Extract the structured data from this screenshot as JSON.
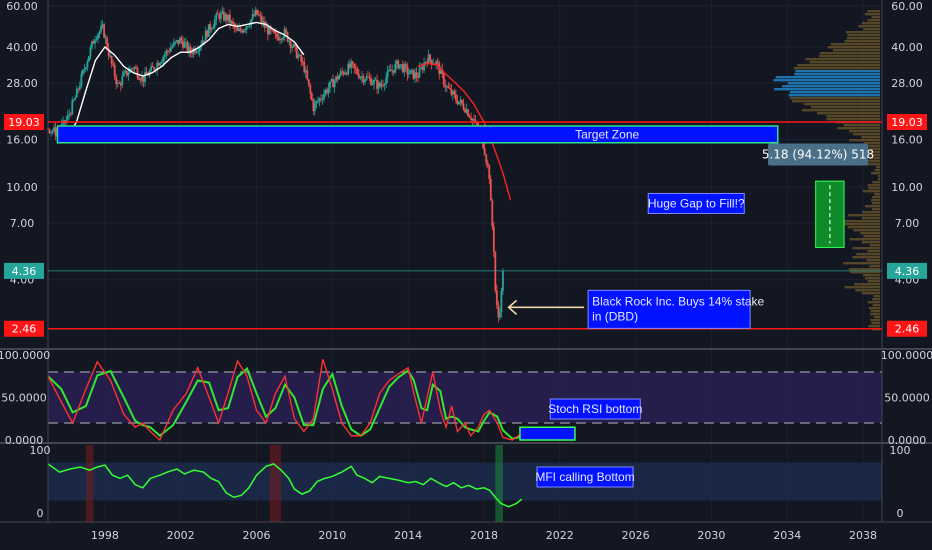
{
  "chart_data": [
    {
      "type": "candlestick",
      "panel": "price",
      "scale": "log",
      "ylim": [
        2.2,
        60
      ],
      "xlim": [
        1995.0,
        2039.0
      ],
      "y_ticks": [
        "60.00",
        "40.00",
        "28.00",
        "16.00",
        "10.00",
        "7.00",
        "4.00"
      ],
      "price_labels": {
        "upper_red": "19.03",
        "current": "4.36",
        "lower_red": "2.46"
      },
      "levels": {
        "upper_red": 19.03,
        "current": 4.36,
        "lower_red": 2.46
      },
      "target_zone": {
        "label": "Target Zone",
        "y_low": 15.5,
        "y_high": 18.3,
        "x_start": 1995.5,
        "x_end": 2033.5
      },
      "annotations": [
        {
          "id": "gap",
          "text": "Huge Gap to Fill!?",
          "x": 2029.2,
          "y": 8.5
        },
        {
          "id": "blackrock",
          "lines": [
            "Black Rock Inc. Buys 14% stake",
            "in (DBD)"
          ],
          "x": 2023.6,
          "y": 3.1
        }
      ],
      "measure_box": {
        "text": "5.18 (94.12%) 518",
        "x_start": 2035.5,
        "x_end": 2037.0,
        "y_low": 5.5,
        "y_high": 10.6
      },
      "price_path": [
        [
          1995.0,
          18.0
        ],
        [
          1995.5,
          17.0
        ],
        [
          1996.0,
          19.5
        ],
        [
          1996.5,
          25.0
        ],
        [
          1997.0,
          34.0
        ],
        [
          1997.5,
          45.0
        ],
        [
          1997.9,
          48.0
        ],
        [
          1998.3,
          35.0
        ],
        [
          1998.7,
          27.0
        ],
        [
          1999.0,
          30.0
        ],
        [
          1999.5,
          33.0
        ],
        [
          2000.0,
          29.0
        ],
        [
          2000.5,
          32.0
        ],
        [
          2001.0,
          36.0
        ],
        [
          2001.5,
          40.0
        ],
        [
          2002.0,
          43.0
        ],
        [
          2002.5,
          38.0
        ],
        [
          2003.0,
          41.0
        ],
        [
          2003.5,
          48.0
        ],
        [
          2004.0,
          55.0
        ],
        [
          2004.5,
          53.0
        ],
        [
          2005.0,
          46.0
        ],
        [
          2005.5,
          50.0
        ],
        [
          2006.0,
          56.0
        ],
        [
          2006.5,
          48.0
        ],
        [
          2007.0,
          44.0
        ],
        [
          2007.5,
          46.0
        ],
        [
          2008.0,
          39.0
        ],
        [
          2008.5,
          33.0
        ],
        [
          2009.0,
          22.0
        ],
        [
          2009.5,
          25.0
        ],
        [
          2010.0,
          28.0
        ],
        [
          2010.5,
          31.0
        ],
        [
          2011.0,
          33.0
        ],
        [
          2011.5,
          30.0
        ],
        [
          2012.0,
          29.0
        ],
        [
          2012.5,
          27.0
        ],
        [
          2013.0,
          31.0
        ],
        [
          2013.5,
          34.0
        ],
        [
          2014.0,
          31.0
        ],
        [
          2014.5,
          30.0
        ],
        [
          2015.0,
          36.0
        ],
        [
          2015.5,
          34.0
        ],
        [
          2016.0,
          27.0
        ],
        [
          2016.5,
          24.0
        ],
        [
          2017.0,
          22.0
        ],
        [
          2017.5,
          19.0
        ],
        [
          2018.0,
          15.0
        ],
        [
          2018.3,
          11.0
        ],
        [
          2018.4,
          7.5
        ],
        [
          2018.5,
          5.8
        ],
        [
          2018.6,
          3.6
        ],
        [
          2018.7,
          3.0
        ],
        [
          2018.8,
          2.6
        ],
        [
          2018.9,
          3.4
        ],
        [
          2019.0,
          4.36
        ]
      ],
      "ma_white": [
        [
          1995.5,
          16.0
        ],
        [
          1996.0,
          16.5
        ],
        [
          1996.5,
          19.0
        ],
        [
          1997.0,
          26.0
        ],
        [
          1997.5,
          35.0
        ],
        [
          1998.0,
          40.0
        ],
        [
          1998.5,
          37.0
        ],
        [
          1999.0,
          33.0
        ],
        [
          1999.5,
          31.0
        ],
        [
          2000.0,
          30.0
        ],
        [
          2000.5,
          31.0
        ],
        [
          2001.0,
          33.0
        ],
        [
          2001.5,
          36.0
        ],
        [
          2002.0,
          38.0
        ],
        [
          2002.5,
          38.0
        ],
        [
          2003.0,
          40.0
        ],
        [
          2003.5,
          43.0
        ],
        [
          2004.0,
          48.0
        ],
        [
          2004.5,
          50.0
        ],
        [
          2005.0,
          49.0
        ],
        [
          2005.5,
          50.0
        ],
        [
          2006.0,
          51.0
        ],
        [
          2006.5,
          50.0
        ],
        [
          2007.0,
          47.0
        ],
        [
          2007.5,
          45.0
        ],
        [
          2008.0,
          42.0
        ],
        [
          2008.5,
          37.0
        ]
      ],
      "ma_red": [
        [
          2014.5,
          33.0
        ],
        [
          2015.0,
          34.0
        ],
        [
          2015.5,
          33.5
        ],
        [
          2016.0,
          30.5
        ],
        [
          2016.5,
          28.0
        ],
        [
          2017.0,
          25.5
        ],
        [
          2017.5,
          22.5
        ],
        [
          2018.0,
          19.0
        ],
        [
          2018.5,
          15.0
        ],
        [
          2019.0,
          11.5
        ],
        [
          2019.4,
          8.8
        ]
      ]
    },
    {
      "type": "line",
      "panel": "stoch_rsi",
      "ylim": [
        0,
        100
      ],
      "y_ticks": [
        "100.0000",
        "50.0000",
        "0.0000"
      ],
      "bands": {
        "upper": 80,
        "lower": 20
      },
      "annotation": "Stoch RSI bottom",
      "series": [
        {
          "values": [
            [
              1995.0,
              75
            ],
            [
              1995.7,
              45
            ],
            [
              1996.3,
              20
            ],
            [
              1997.0,
              60
            ],
            [
              1997.6,
              92
            ],
            [
              1998.3,
              70
            ],
            [
              1999.0,
              30
            ],
            [
              1999.6,
              15
            ],
            [
              2000.0,
              20
            ],
            [
              2000.4,
              10
            ],
            [
              2000.9,
              0
            ],
            [
              2001.6,
              35
            ],
            [
              2002.3,
              55
            ],
            [
              2002.9,
              85
            ],
            [
              2003.5,
              50
            ],
            [
              2004.0,
              20
            ],
            [
              2004.5,
              55
            ],
            [
              2005.0,
              93
            ],
            [
              2005.5,
              75
            ],
            [
              2006.0,
              35
            ],
            [
              2006.5,
              20
            ],
            [
              2007.0,
              55
            ],
            [
              2007.5,
              75
            ],
            [
              2008.0,
              25
            ],
            [
              2008.5,
              10
            ],
            [
              2009.0,
              25
            ],
            [
              2009.5,
              95
            ],
            [
              2010.0,
              60
            ],
            [
              2010.5,
              20
            ],
            [
              2011.0,
              5
            ],
            [
              2011.5,
              5
            ],
            [
              2012.0,
              20
            ],
            [
              2012.5,
              55
            ],
            [
              2013.0,
              70
            ],
            [
              2013.5,
              78
            ],
            [
              2014.0,
              85
            ],
            [
              2014.3,
              55
            ],
            [
              2014.7,
              20
            ],
            [
              2015.0,
              50
            ],
            [
              2015.3,
              80
            ],
            [
              2015.7,
              35
            ],
            [
              2016.0,
              15
            ],
            [
              2016.3,
              40
            ],
            [
              2016.6,
              10
            ],
            [
              2017.0,
              20
            ],
            [
              2017.3,
              5
            ],
            [
              2017.7,
              15
            ],
            [
              2018.0,
              30
            ],
            [
              2018.3,
              35
            ],
            [
              2018.7,
              20
            ],
            [
              2019.0,
              3
            ],
            [
              2019.5,
              0
            ],
            [
              2020.0,
              8
            ]
          ]
        }
      ],
      "highlight": {
        "x_start": 2019.9,
        "x_end": 2022.8,
        "y_low": 0,
        "y_high": 15
      }
    },
    {
      "type": "line",
      "panel": "mfi",
      "ylim": [
        0,
        100
      ],
      "y_ticks": [
        "100",
        "0"
      ],
      "band": {
        "upper": 80,
        "lower": 20
      },
      "annotation": "MFI calling Bottom",
      "series": [
        {
          "values": [
            [
              1995.0,
              78
            ],
            [
              1995.6,
              65
            ],
            [
              1996.2,
              70
            ],
            [
              1996.7,
              73
            ],
            [
              1997.2,
              68
            ],
            [
              1997.6,
              73
            ],
            [
              1998.0,
              76
            ],
            [
              1998.4,
              60
            ],
            [
              1998.8,
              55
            ],
            [
              1999.2,
              60
            ],
            [
              1999.6,
              45
            ],
            [
              2000.0,
              40
            ],
            [
              2000.4,
              55
            ],
            [
              2000.9,
              60
            ],
            [
              2001.3,
              65
            ],
            [
              2001.8,
              70
            ],
            [
              2002.2,
              62
            ],
            [
              2002.7,
              68
            ],
            [
              2003.2,
              65
            ],
            [
              2003.6,
              55
            ],
            [
              2004.0,
              50
            ],
            [
              2004.4,
              32
            ],
            [
              2004.8,
              25
            ],
            [
              2005.2,
              28
            ],
            [
              2005.6,
              40
            ],
            [
              2006.0,
              60
            ],
            [
              2006.5,
              74
            ],
            [
              2006.9,
              78
            ],
            [
              2007.3,
              68
            ],
            [
              2007.7,
              55
            ],
            [
              2008.0,
              38
            ],
            [
              2008.4,
              30
            ],
            [
              2008.8,
              35
            ],
            [
              2009.2,
              50
            ],
            [
              2009.6,
              55
            ],
            [
              2010.0,
              58
            ],
            [
              2010.5,
              65
            ],
            [
              2011.0,
              74
            ],
            [
              2011.3,
              60
            ],
            [
              2011.7,
              55
            ],
            [
              2012.1,
              48
            ],
            [
              2012.5,
              58
            ],
            [
              2013.0,
              55
            ],
            [
              2013.5,
              52
            ],
            [
              2014.0,
              48
            ],
            [
              2014.4,
              50
            ],
            [
              2014.8,
              45
            ],
            [
              2015.2,
              55
            ],
            [
              2015.6,
              48
            ],
            [
              2016.0,
              42
            ],
            [
              2016.4,
              48
            ],
            [
              2016.8,
              40
            ],
            [
              2017.2,
              44
            ],
            [
              2017.6,
              38
            ],
            [
              2018.0,
              40
            ],
            [
              2018.3,
              36
            ],
            [
              2018.6,
              25
            ],
            [
              2018.9,
              15
            ],
            [
              2019.3,
              10
            ],
            [
              2019.7,
              15
            ],
            [
              2020.0,
              22
            ]
          ]
        }
      ]
    }
  ],
  "x_axis": {
    "years": [
      "1998",
      "2002",
      "2006",
      "2010",
      "2014",
      "2018",
      "2022",
      "2026",
      "2030",
      "2034",
      "2038"
    ]
  },
  "colors": {
    "background": "#131722",
    "up_candle": "#26a69a",
    "down_candle": "#ef5350",
    "target_zone": "#0012ff",
    "red_line": "#ff1515",
    "ma_white": "#ffffff",
    "ma_red": "#ff2020",
    "stoch_k": "#ff3030",
    "stoch_d": "#2eea2e",
    "mfi_line": "#33ff33"
  }
}
